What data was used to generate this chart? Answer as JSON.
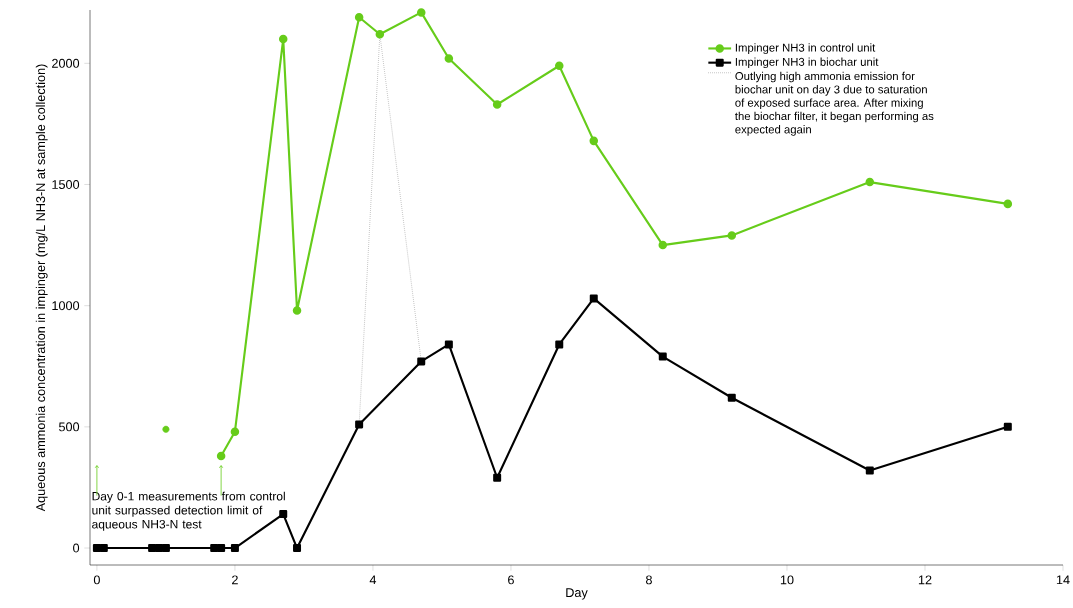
{
  "chart_data": {
    "type": "line",
    "xlabel": "Day",
    "ylabel": "Aqueous ammonia concentration in impinger (mg/L NH3-N at sample collection)",
    "xlim": [
      -0.1,
      14
    ],
    "ylim": [
      -70,
      2220
    ],
    "xticks": [
      0,
      2,
      4,
      6,
      8,
      10,
      12,
      14
    ],
    "yticks": [
      0,
      500,
      1000,
      1500,
      2000
    ],
    "grid": false,
    "legend": "top right",
    "annotations": [
      "Day 0-1 measurements from control unit surpassed detection limit of aqueous NH3-N test"
    ],
    "series": [
      {
        "name": "Impinger NH3 in control unit",
        "color": "#66cc1a",
        "marker": "circle",
        "line_style": "solid",
        "x": [
          1.8,
          2.0,
          2.7,
          2.9,
          3.8,
          4.1,
          4.7,
          5.1,
          5.8,
          6.7,
          7.2,
          8.2,
          9.2,
          11.2,
          13.2
        ],
        "values": [
          380,
          480,
          2100,
          980,
          2190,
          2120,
          2210,
          2020,
          1830,
          1990,
          1680,
          1250,
          1290,
          1510,
          1420
        ]
      },
      {
        "name": "Impinger NH3 in biochar unit",
        "color": "#000000",
        "marker": "square",
        "line_style": "solid",
        "x": [
          0.0,
          0.1,
          0.8,
          0.9,
          1.0,
          1.7,
          1.8,
          2.0,
          2.7,
          2.9,
          3.8,
          4.7,
          5.1,
          5.8,
          6.7,
          7.2,
          8.2,
          9.2,
          11.2,
          13.2
        ],
        "values": [
          0,
          0,
          0,
          0,
          0,
          0,
          0,
          0,
          140,
          0,
          510,
          770,
          840,
          290,
          840,
          1030,
          790,
          620,
          320,
          500
        ]
      },
      {
        "name": "Outlying high ammonia emission for biochar unit on day 3 due to saturation of exposed surface area.  After mixing the biochar filter, it began performing as expected again",
        "color": "#808080",
        "marker": "none",
        "line_style": "dotted",
        "x": [
          3.8,
          4.1,
          4.7
        ],
        "values": [
          510,
          2120,
          770
        ]
      },
      {
        "type": "scatter",
        "color": "#66cc1a",
        "marker": "circle",
        "x": [
          1.0
        ],
        "values": [
          490
        ]
      }
    ]
  }
}
